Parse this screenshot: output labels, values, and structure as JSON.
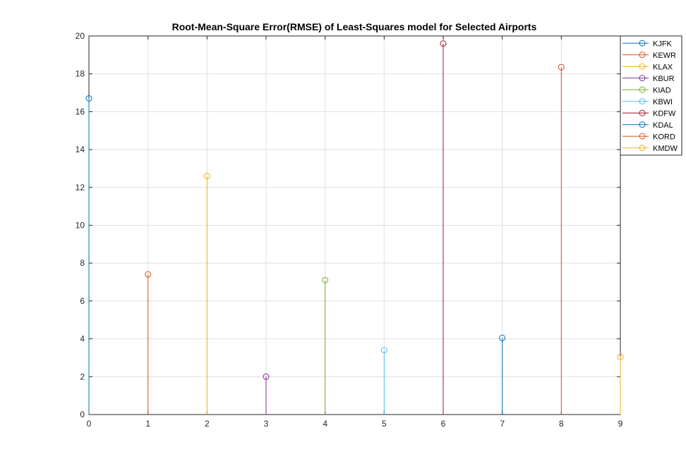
{
  "chart_data": {
    "type": "stem",
    "title": "Root-Mean-Square Error(RMSE) of Least-Squares model for Selected Airports",
    "xlabel": "",
    "ylabel": "",
    "xlim": [
      0,
      9
    ],
    "ylim": [
      0,
      20
    ],
    "xticks": [
      "0",
      "1",
      "2",
      "3",
      "4",
      "5",
      "6",
      "7",
      "8",
      "9"
    ],
    "yticks": [
      "0",
      "2",
      "4",
      "6",
      "8",
      "10",
      "12",
      "14",
      "16",
      "18",
      "20"
    ],
    "grid": true,
    "legend_position": "top-right outside",
    "series": [
      {
        "name": "KJFK",
        "x": 0,
        "value": 16.7,
        "color": "#0072BD"
      },
      {
        "name": "KEWR",
        "x": 1,
        "value": 7.4,
        "color": "#D95319"
      },
      {
        "name": "KLAX",
        "x": 2,
        "value": 12.6,
        "color": "#EDB120"
      },
      {
        "name": "KBUR",
        "x": 3,
        "value": 2.0,
        "color": "#7E2F8E"
      },
      {
        "name": "KIAD",
        "x": 4,
        "value": 7.1,
        "color": "#77AC30"
      },
      {
        "name": "KBWI",
        "x": 5,
        "value": 3.4,
        "color": "#4DBEEE"
      },
      {
        "name": "KDFW",
        "x": 6,
        "value": 19.6,
        "color": "#A2142F"
      },
      {
        "name": "KDAL",
        "x": 7,
        "value": 4.05,
        "color": "#0072BD"
      },
      {
        "name": "KORD",
        "x": 8,
        "value": 18.35,
        "color": "#D95319"
      },
      {
        "name": "KMDW",
        "x": 9,
        "value": 3.05,
        "color": "#EDB120"
      }
    ]
  }
}
